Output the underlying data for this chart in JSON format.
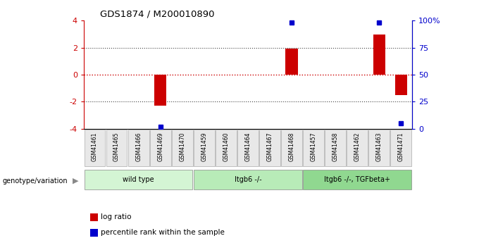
{
  "title": "GDS1874 / M200010890",
  "samples": [
    "GSM41461",
    "GSM41465",
    "GSM41466",
    "GSM41469",
    "GSM41470",
    "GSM41459",
    "GSM41460",
    "GSM41464",
    "GSM41467",
    "GSM41468",
    "GSM41457",
    "GSM41458",
    "GSM41462",
    "GSM41463",
    "GSM41471"
  ],
  "log_ratio": [
    0,
    0,
    0,
    -2.3,
    0,
    0,
    0,
    0,
    0,
    1.95,
    0,
    0,
    0,
    3.0,
    -1.5
  ],
  "percentile_rank": [
    null,
    null,
    null,
    2,
    null,
    null,
    null,
    null,
    null,
    98,
    null,
    null,
    null,
    98,
    5
  ],
  "groups": [
    {
      "label": "wild type",
      "start": 0,
      "end": 5,
      "color": "#d4f5d4"
    },
    {
      "label": "Itgb6 -/-",
      "start": 5,
      "end": 10,
      "color": "#b8ebb8"
    },
    {
      "label": "Itgb6 -/-, TGFbeta+",
      "start": 10,
      "end": 15,
      "color": "#90d890"
    }
  ],
  "ylim": [
    -4,
    4
  ],
  "yticks_left": [
    -4,
    -2,
    0,
    2,
    4
  ],
  "bar_color_red": "#cc0000",
  "bar_color_blue": "#0000cc",
  "bg_color": "#ffffff",
  "dotted_line_red": "#cc0000",
  "dotted_grid_dark": "#444444",
  "legend_items": [
    {
      "label": "log ratio",
      "color": "#cc0000"
    },
    {
      "label": "percentile rank within the sample",
      "color": "#0000cc"
    }
  ]
}
